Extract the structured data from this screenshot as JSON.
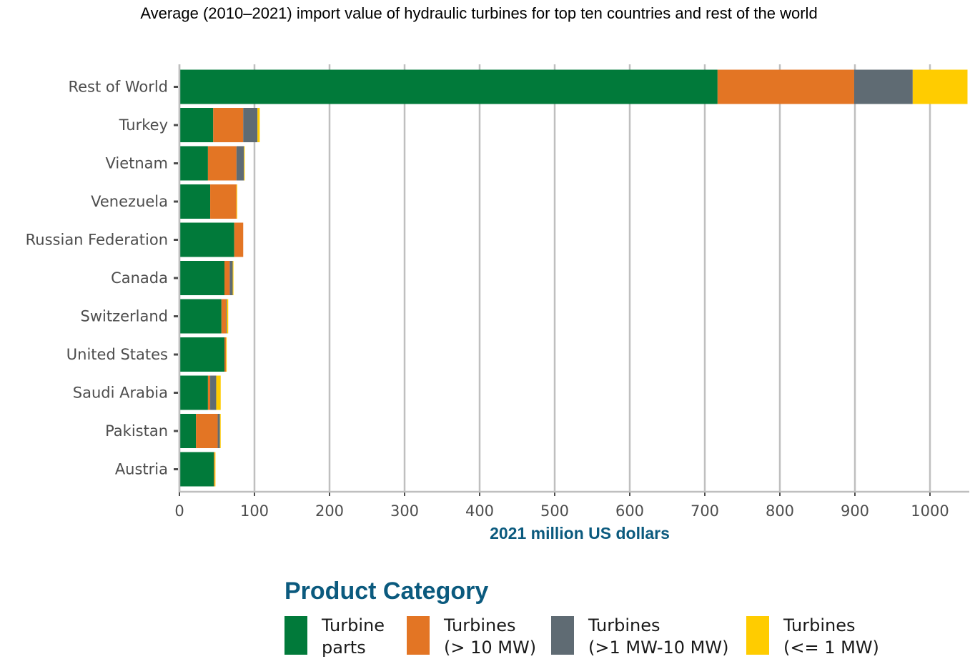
{
  "chart_data": {
    "type": "bar",
    "orientation": "horizontal",
    "stacked": true,
    "title": "Average (2010–2021) import value of hydraulic turbines for top ten countries and rest of the world",
    "xlabel": "2021 million US dollars",
    "ylabel": "",
    "xlim": [
      0,
      1050
    ],
    "xticks": [
      0,
      100,
      200,
      300,
      400,
      500,
      600,
      700,
      800,
      900,
      1000
    ],
    "grid": true,
    "legend_position": "bottom",
    "legend_title": "Product Category",
    "categories": [
      "Rest of World",
      "Turkey",
      "Vietnam",
      "Venezuela",
      "Russian Federation",
      "Canada",
      "Switzerland",
      "United States",
      "Saudi Arabia",
      "Pakistan",
      "Austria"
    ],
    "series": [
      {
        "name": "Turbine\nparts",
        "color": "#017a3a",
        "values": [
          717,
          45,
          38,
          41,
          73,
          60,
          56,
          60,
          38,
          22,
          46
        ]
      },
      {
        "name": "Turbines\n(> 10 MW)",
        "color": "#e37524",
        "values": [
          182,
          40,
          38,
          35,
          12,
          7,
          6,
          2,
          3,
          29,
          1
        ]
      },
      {
        "name": "Turbines\n(>1 MW-10 MW)",
        "color": "#5f6b73",
        "values": [
          78,
          19,
          10,
          0,
          0,
          4,
          1,
          0,
          8,
          3,
          0
        ]
      },
      {
        "name": "Turbines\n(<= 1 MW)",
        "color": "#ffcc00",
        "values": [
          73,
          3,
          1,
          1,
          0,
          1,
          2,
          1,
          6,
          1,
          1
        ]
      }
    ]
  }
}
